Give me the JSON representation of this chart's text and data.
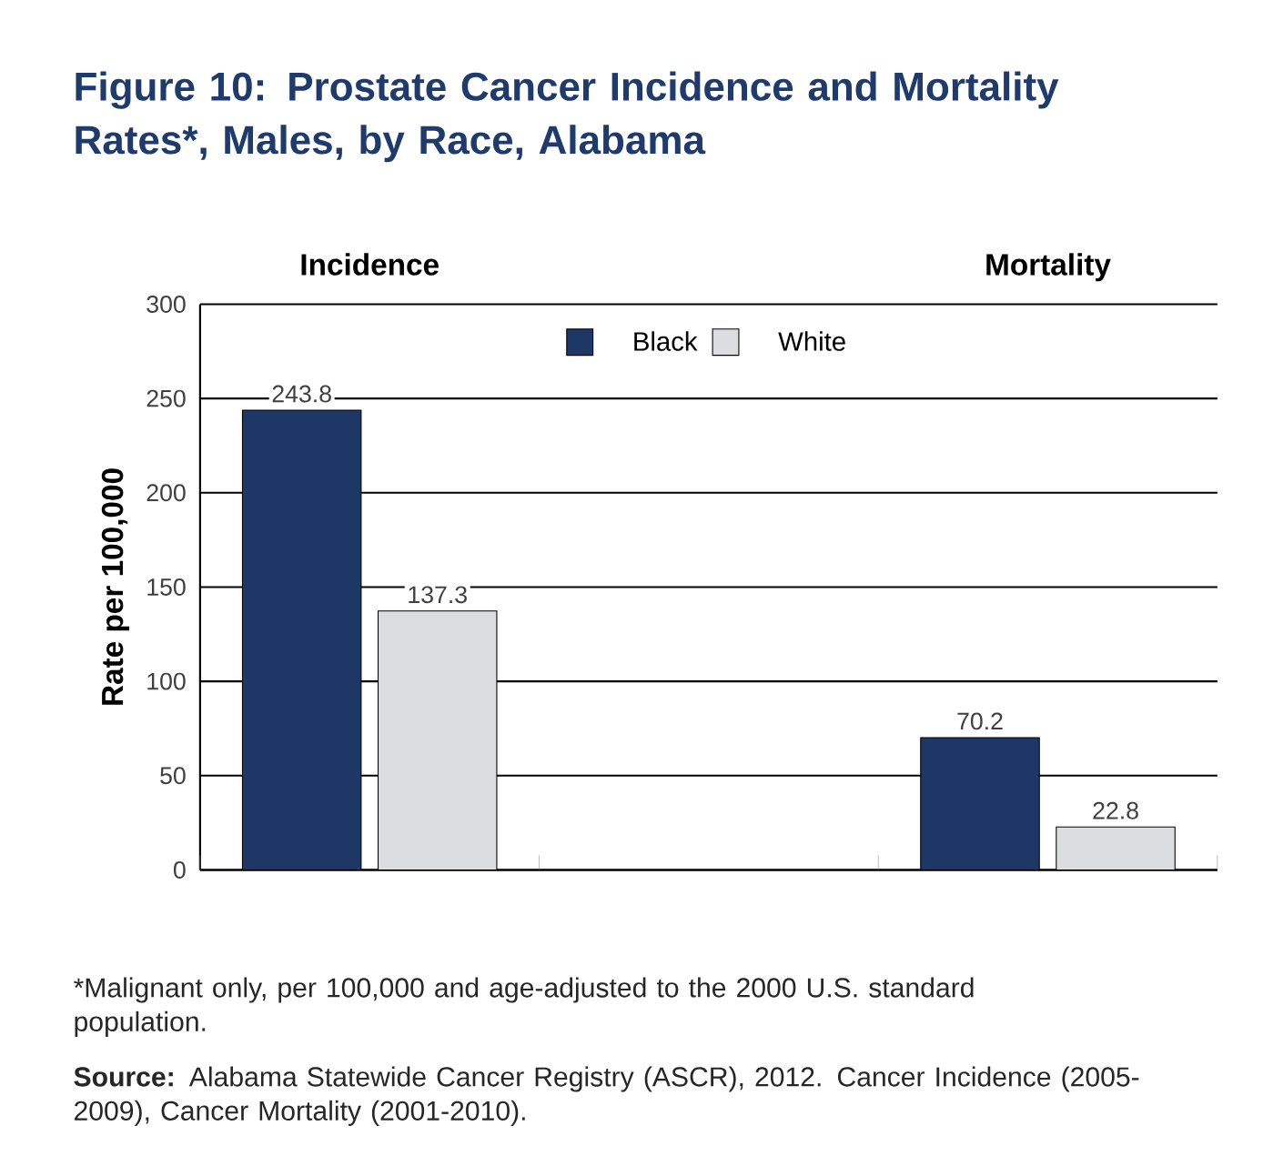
{
  "chart_data": {
    "type": "bar",
    "title": "Figure 10: Prostate Cancer Incidence and Mortality Rates*, Males, by Race, Alabama",
    "ylabel": "Rate per 100,000",
    "categories": [
      "Incidence",
      null,
      "Mortality"
    ],
    "series": [
      {
        "name": "Black",
        "color": "#1d3767",
        "values": [
          243.8,
          null,
          70.2
        ]
      },
      {
        "name": "White",
        "color": "#dcdddf",
        "values": [
          137.3,
          null,
          22.8
        ]
      }
    ],
    "ylim": [
      0,
      300
    ],
    "yticks": [
      0,
      50,
      100,
      150,
      200,
      250,
      300
    ],
    "grid": "y",
    "legend": "top",
    "data_labels": true,
    "annotations": [
      "*Malignant only, per 100,000 and age-adjusted to the 2000 U.S. standard population.",
      "**Source:** Alabama Statewide Cancer Registry (ASCR), 2012. Cancer Incidence (2005-2009), Cancer Mortality (2001-2010)."
    ]
  }
}
